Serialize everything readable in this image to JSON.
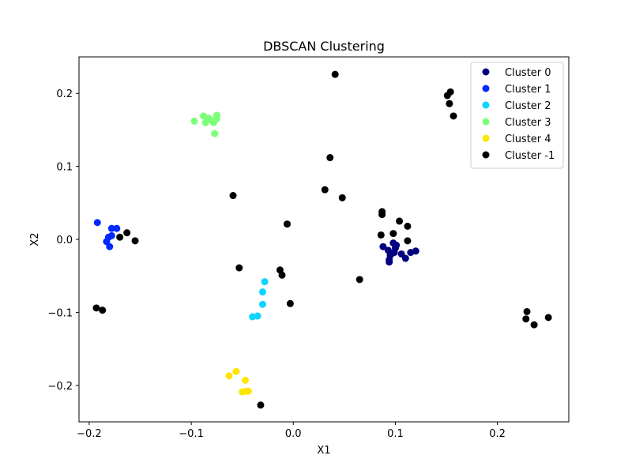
{
  "chart_data": {
    "type": "scatter",
    "title": "DBSCAN Clustering",
    "xlabel": "X1",
    "ylabel": "X2",
    "xlim": [
      -0.21,
      0.27
    ],
    "ylim": [
      -0.25,
      0.25
    ],
    "xticks": [
      -0.2,
      -0.1,
      0.0,
      0.1,
      0.2
    ],
    "xtick_labels": [
      "−0.2",
      "−0.1",
      "0.0",
      "0.1",
      "0.2"
    ],
    "yticks": [
      -0.2,
      -0.1,
      0.0,
      0.1,
      0.2
    ],
    "ytick_labels": [
      "−0.2",
      "−0.1",
      "0.0",
      "0.1",
      "0.2"
    ],
    "grid": false,
    "legend_position": "top-right",
    "series": [
      {
        "name": "Cluster 0",
        "color": "#000080",
        "x": [
          0.088,
          0.093,
          0.095,
          0.098,
          0.1,
          0.101,
          0.094,
          0.096,
          0.106,
          0.11,
          0.115,
          0.12,
          0.094,
          0.099
        ],
        "y": [
          -0.01,
          -0.015,
          -0.022,
          -0.005,
          -0.012,
          -0.008,
          -0.028,
          -0.02,
          -0.02,
          -0.026,
          -0.018,
          -0.016,
          -0.031,
          -0.018
        ]
      },
      {
        "name": "Cluster 1",
        "color": "#0028ff",
        "x": [
          -0.192,
          -0.178,
          -0.173,
          -0.178,
          -0.181,
          -0.183,
          -0.18
        ],
        "y": [
          0.023,
          0.015,
          0.015,
          0.005,
          0.003,
          -0.003,
          -0.01
        ]
      },
      {
        "name": "Cluster 2",
        "color": "#0dd5ff",
        "x": [
          -0.028,
          -0.03,
          -0.03,
          -0.035,
          -0.04
        ],
        "y": [
          -0.058,
          -0.072,
          -0.089,
          -0.105,
          -0.106
        ]
      },
      {
        "name": "Cluster 3",
        "color": "#7cff79",
        "x": [
          -0.097,
          -0.088,
          -0.083,
          -0.08,
          -0.075,
          -0.075,
          -0.078,
          -0.086,
          -0.077
        ],
        "y": [
          0.162,
          0.169,
          0.166,
          0.163,
          0.17,
          0.165,
          0.16,
          0.16,
          0.145
        ]
      },
      {
        "name": "Cluster 4",
        "color": "#ffe600",
        "x": [
          -0.063,
          -0.056,
          -0.047,
          -0.046,
          -0.05,
          -0.044
        ],
        "y": [
          -0.187,
          -0.181,
          -0.193,
          -0.208,
          -0.209,
          -0.208
        ]
      },
      {
        "name": "Cluster -1",
        "color": "#000000",
        "x": [
          0.041,
          0.036,
          0.031,
          0.048,
          -0.059,
          -0.006,
          -0.053,
          -0.013,
          -0.011,
          -0.003,
          0.065,
          0.087,
          0.087,
          0.086,
          0.098,
          0.104,
          0.112,
          0.112,
          0.151,
          0.154,
          0.153,
          0.157,
          0.229,
          0.228,
          0.236,
          0.25,
          -0.163,
          -0.17,
          -0.155,
          -0.193,
          -0.187,
          -0.032
        ],
        "y": [
          0.226,
          0.112,
          0.068,
          0.057,
          0.06,
          0.021,
          -0.039,
          -0.042,
          -0.049,
          -0.088,
          -0.055,
          0.038,
          0.034,
          0.006,
          0.008,
          0.025,
          0.018,
          -0.002,
          0.197,
          0.202,
          0.186,
          0.169,
          -0.099,
          -0.109,
          -0.117,
          -0.107,
          0.009,
          0.003,
          -0.002,
          -0.094,
          -0.097,
          -0.227
        ]
      }
    ]
  }
}
